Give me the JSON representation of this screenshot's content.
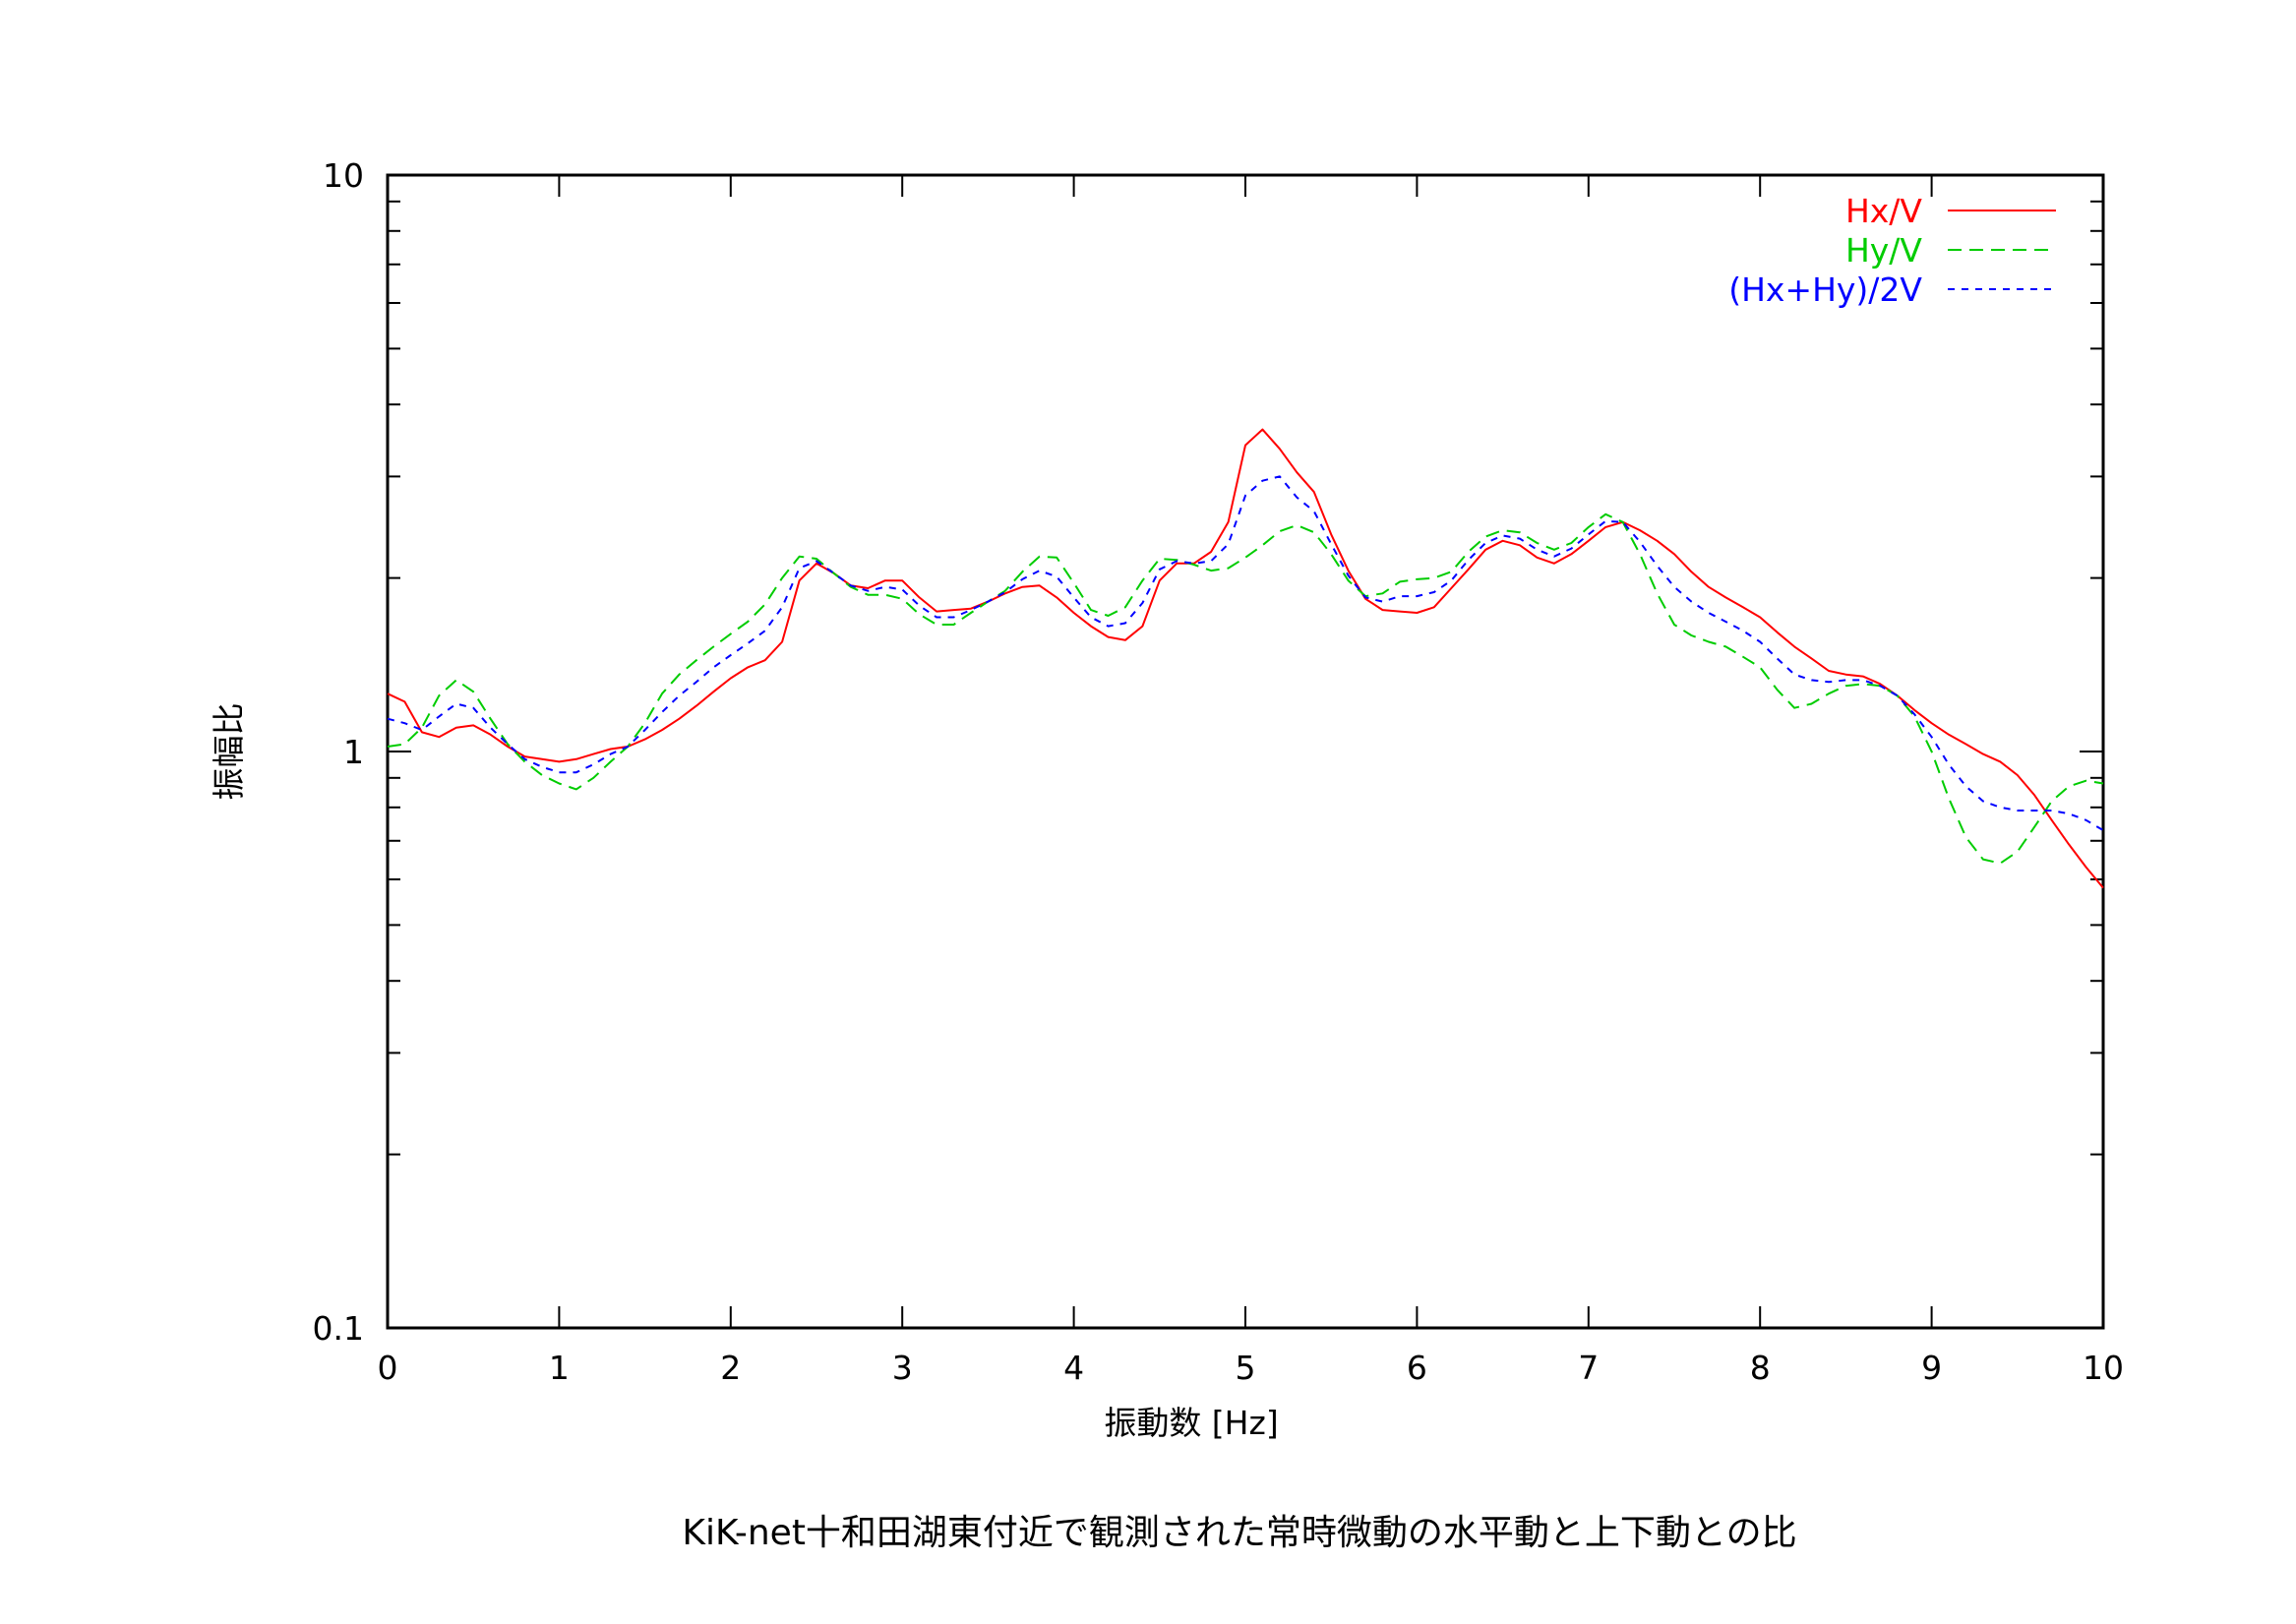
{
  "chart_data": {
    "type": "line",
    "title": "KiK-net十和田湖東付近で観測された常時微動の水平動と上下動との比",
    "xlabel": "振動数 [Hz]",
    "ylabel": "振幅比",
    "xlim": [
      0,
      10
    ],
    "ylim": [
      0.1,
      10
    ],
    "yscale": "log",
    "grid": false,
    "legend_position": "top-right",
    "x_ticks": [
      "0",
      "1",
      "2",
      "3",
      "4",
      "5",
      "6",
      "7",
      "8",
      "9",
      "10"
    ],
    "y_ticks": [
      "0.1",
      "1",
      "10"
    ],
    "series": [
      {
        "name": "Hx/V",
        "color": "#ff0000",
        "dash": "solid",
        "x": [
          0,
          0.1,
          0.2,
          0.3,
          0.4,
          0.5,
          0.6,
          0.7,
          0.8,
          0.9,
          1.0,
          1.1,
          1.2,
          1.3,
          1.4,
          1.5,
          1.6,
          1.7,
          1.8,
          1.9,
          2.0,
          2.1,
          2.2,
          2.3,
          2.4,
          2.5,
          2.6,
          2.7,
          2.8,
          2.9,
          3.0,
          3.1,
          3.2,
          3.3,
          3.4,
          3.5,
          3.6,
          3.7,
          3.8,
          3.9,
          4.0,
          4.1,
          4.2,
          4.3,
          4.4,
          4.5,
          4.6,
          4.7,
          4.8,
          4.9,
          5.0,
          5.1,
          5.2,
          5.3,
          5.4,
          5.5,
          5.6,
          5.7,
          5.8,
          5.9,
          6.0,
          6.1,
          6.2,
          6.3,
          6.4,
          6.5,
          6.6,
          6.7,
          6.8,
          6.9,
          7.0,
          7.1,
          7.2,
          7.3,
          7.4,
          7.5,
          7.6,
          7.7,
          7.8,
          7.9,
          8.0,
          8.1,
          8.2,
          8.3,
          8.4,
          8.5,
          8.6,
          8.7,
          8.8,
          8.9,
          9.0,
          9.1,
          9.2,
          9.3,
          9.4,
          9.5,
          9.6,
          9.7,
          9.8,
          9.9,
          10.0
        ],
        "y": [
          1.26,
          1.22,
          1.08,
          1.06,
          1.1,
          1.11,
          1.07,
          1.02,
          0.98,
          0.97,
          0.96,
          0.97,
          0.99,
          1.01,
          1.02,
          1.05,
          1.09,
          1.14,
          1.2,
          1.27,
          1.34,
          1.4,
          1.44,
          1.55,
          1.98,
          2.12,
          2.04,
          1.94,
          1.92,
          1.98,
          1.98,
          1.85,
          1.75,
          1.76,
          1.77,
          1.82,
          1.88,
          1.93,
          1.94,
          1.85,
          1.74,
          1.65,
          1.58,
          1.56,
          1.65,
          1.98,
          2.12,
          2.12,
          2.22,
          2.5,
          3.4,
          3.62,
          3.35,
          3.05,
          2.82,
          2.38,
          2.06,
          1.84,
          1.76,
          1.75,
          1.74,
          1.78,
          1.92,
          2.07,
          2.24,
          2.32,
          2.28,
          2.17,
          2.12,
          2.2,
          2.32,
          2.45,
          2.5,
          2.42,
          2.32,
          2.2,
          2.05,
          1.93,
          1.85,
          1.78,
          1.71,
          1.61,
          1.52,
          1.45,
          1.38,
          1.36,
          1.35,
          1.31,
          1.25,
          1.18,
          1.12,
          1.07,
          1.03,
          0.99,
          0.96,
          0.91,
          0.84,
          0.76,
          0.69,
          0.63,
          0.58
        ]
      },
      {
        "name": "Hy/V",
        "color": "#00cc00",
        "dash": "long-dash",
        "x": [
          0,
          0.1,
          0.2,
          0.3,
          0.4,
          0.5,
          0.6,
          0.7,
          0.8,
          0.9,
          1.0,
          1.1,
          1.2,
          1.3,
          1.4,
          1.5,
          1.6,
          1.7,
          1.8,
          1.9,
          2.0,
          2.1,
          2.2,
          2.3,
          2.4,
          2.5,
          2.6,
          2.7,
          2.8,
          2.9,
          3.0,
          3.1,
          3.2,
          3.3,
          3.4,
          3.5,
          3.6,
          3.7,
          3.8,
          3.9,
          4.0,
          4.1,
          4.2,
          4.3,
          4.4,
          4.5,
          4.6,
          4.7,
          4.8,
          4.9,
          5.0,
          5.1,
          5.2,
          5.3,
          5.4,
          5.5,
          5.6,
          5.7,
          5.8,
          5.9,
          6.0,
          6.1,
          6.2,
          6.3,
          6.4,
          6.5,
          6.6,
          6.7,
          6.8,
          6.9,
          7.0,
          7.1,
          7.2,
          7.3,
          7.4,
          7.5,
          7.6,
          7.7,
          7.8,
          7.9,
          8.0,
          8.1,
          8.2,
          8.3,
          8.4,
          8.5,
          8.6,
          8.7,
          8.8,
          8.9,
          9.0,
          9.1,
          9.2,
          9.3,
          9.4,
          9.5,
          9.6,
          9.7,
          9.8,
          9.9,
          10.0
        ],
        "y": [
          1.02,
          1.03,
          1.1,
          1.25,
          1.33,
          1.27,
          1.14,
          1.03,
          0.96,
          0.91,
          0.88,
          0.86,
          0.9,
          0.96,
          1.02,
          1.12,
          1.26,
          1.36,
          1.44,
          1.52,
          1.6,
          1.68,
          1.8,
          2.0,
          2.18,
          2.16,
          2.04,
          1.93,
          1.87,
          1.87,
          1.84,
          1.73,
          1.66,
          1.66,
          1.74,
          1.82,
          1.9,
          2.05,
          2.18,
          2.17,
          1.96,
          1.76,
          1.72,
          1.78,
          1.98,
          2.16,
          2.15,
          2.11,
          2.06,
          2.08,
          2.17,
          2.28,
          2.41,
          2.47,
          2.4,
          2.2,
          1.98,
          1.86,
          1.88,
          1.97,
          1.99,
          2.0,
          2.05,
          2.22,
          2.36,
          2.42,
          2.4,
          2.3,
          2.24,
          2.3,
          2.45,
          2.58,
          2.5,
          2.2,
          1.88,
          1.66,
          1.59,
          1.55,
          1.52,
          1.46,
          1.4,
          1.28,
          1.19,
          1.21,
          1.26,
          1.3,
          1.31,
          1.3,
          1.25,
          1.15,
          1.0,
          0.83,
          0.71,
          0.65,
          0.64,
          0.67,
          0.74,
          0.82,
          0.87,
          0.89,
          0.88
        ]
      },
      {
        "name": "(Hx+Hy)/2V",
        "color": "#0000ff",
        "dash": "short-dash",
        "x": [
          0,
          0.1,
          0.2,
          0.3,
          0.4,
          0.5,
          0.6,
          0.7,
          0.8,
          0.9,
          1.0,
          1.1,
          1.2,
          1.3,
          1.4,
          1.5,
          1.6,
          1.7,
          1.8,
          1.9,
          2.0,
          2.1,
          2.2,
          2.3,
          2.4,
          2.5,
          2.6,
          2.7,
          2.8,
          2.9,
          3.0,
          3.1,
          3.2,
          3.3,
          3.4,
          3.5,
          3.6,
          3.7,
          3.8,
          3.9,
          4.0,
          4.1,
          4.2,
          4.3,
          4.4,
          4.5,
          4.6,
          4.7,
          4.8,
          4.9,
          5.0,
          5.1,
          5.2,
          5.3,
          5.4,
          5.5,
          5.6,
          5.7,
          5.8,
          5.9,
          6.0,
          6.1,
          6.2,
          6.3,
          6.4,
          6.5,
          6.6,
          6.7,
          6.8,
          6.9,
          7.0,
          7.1,
          7.2,
          7.3,
          7.4,
          7.5,
          7.6,
          7.7,
          7.8,
          7.9,
          8.0,
          8.1,
          8.2,
          8.3,
          8.4,
          8.5,
          8.6,
          8.7,
          8.8,
          8.9,
          9.0,
          9.1,
          9.2,
          9.3,
          9.4,
          9.5,
          9.6,
          9.7,
          9.8,
          9.9,
          10.0
        ],
        "y": [
          1.14,
          1.12,
          1.09,
          1.15,
          1.21,
          1.19,
          1.1,
          1.03,
          0.97,
          0.94,
          0.92,
          0.92,
          0.95,
          0.99,
          1.02,
          1.09,
          1.17,
          1.25,
          1.32,
          1.4,
          1.47,
          1.54,
          1.62,
          1.78,
          2.08,
          2.14,
          2.04,
          1.94,
          1.9,
          1.93,
          1.91,
          1.79,
          1.71,
          1.71,
          1.76,
          1.82,
          1.89,
          1.99,
          2.06,
          2.01,
          1.85,
          1.71,
          1.65,
          1.67,
          1.81,
          2.07,
          2.14,
          2.12,
          2.14,
          2.29,
          2.78,
          2.95,
          3.0,
          2.76,
          2.61,
          2.29,
          2.02,
          1.85,
          1.82,
          1.86,
          1.86,
          1.89,
          1.98,
          2.15,
          2.3,
          2.37,
          2.34,
          2.24,
          2.18,
          2.25,
          2.38,
          2.51,
          2.5,
          2.31,
          2.1,
          1.93,
          1.82,
          1.74,
          1.68,
          1.62,
          1.55,
          1.45,
          1.36,
          1.33,
          1.32,
          1.33,
          1.33,
          1.3,
          1.25,
          1.16,
          1.06,
          0.95,
          0.87,
          0.82,
          0.8,
          0.79,
          0.79,
          0.79,
          0.78,
          0.76,
          0.73
        ]
      }
    ]
  }
}
